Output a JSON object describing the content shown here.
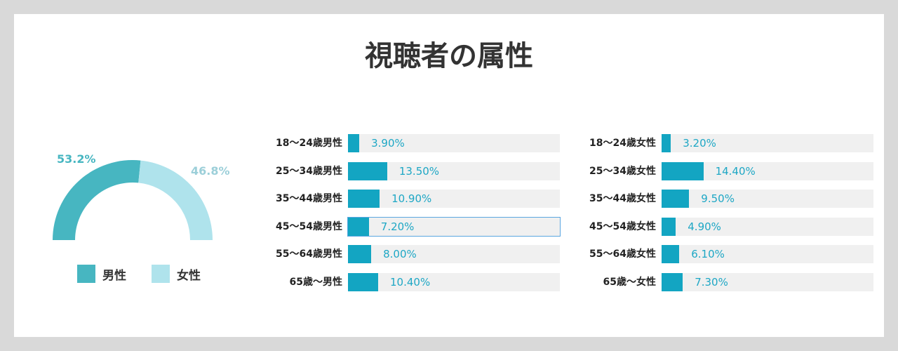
{
  "title": "視聴者の属性",
  "chart_data": [
    {
      "type": "pie",
      "variant": "half-donut",
      "slices": [
        {
          "label": "男性",
          "value": 53.2,
          "value_label": "53.2%",
          "color": "#47b6c1"
        },
        {
          "label": "女性",
          "value": 46.8,
          "value_label": "46.8%",
          "color": "#afe3ec"
        }
      ],
      "legend_position": "bottom",
      "label_colors": {
        "男性": "#47b6c1",
        "女性": "#9ccfd9"
      }
    },
    {
      "type": "bar",
      "orientation": "horizontal",
      "categories": [
        "18〜24歳男性",
        "25〜34歳男性",
        "35〜44歳男性",
        "45〜54歳男性",
        "55〜64歳男性",
        "65歳〜男性"
      ],
      "values": [
        3.9,
        13.5,
        10.9,
        7.2,
        8.0,
        10.4
      ],
      "value_labels": [
        "3.90%",
        "13.50%",
        "10.90%",
        "7.20%",
        "8.00%",
        "10.40%"
      ],
      "xlim": [
        0,
        73
      ],
      "color": "#13a5c2",
      "highlighted_index": 3
    },
    {
      "type": "bar",
      "orientation": "horizontal",
      "categories": [
        "18〜24歳女性",
        "25〜34歳女性",
        "35〜44歳女性",
        "45〜54歳女性",
        "55〜64歳女性",
        "65歳〜女性"
      ],
      "values": [
        3.2,
        14.4,
        9.5,
        4.9,
        6.1,
        7.3
      ],
      "value_labels": [
        "3.20%",
        "14.40%",
        "9.50%",
        "4.90%",
        "6.10%",
        "7.30%"
      ],
      "xlim": [
        0,
        73
      ],
      "color": "#13a5c2"
    }
  ]
}
